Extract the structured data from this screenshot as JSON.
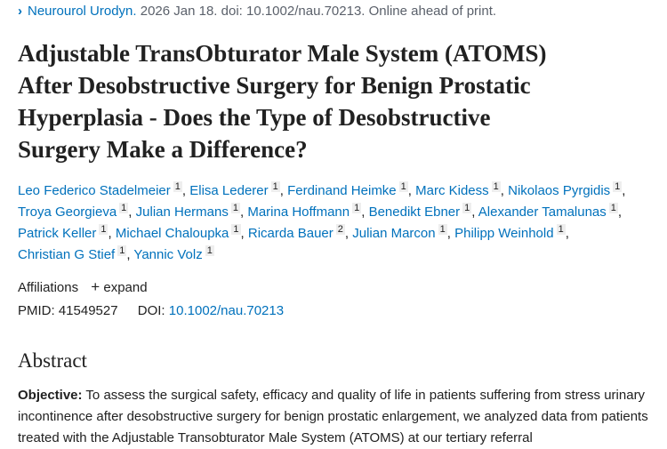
{
  "citation": {
    "journal": "Neurourol Urodyn.",
    "rest": " 2026 Jan 18. doi: 10.1002/nau.70213. Online ahead of print.",
    "icon": "chevron-right-icon"
  },
  "title_lines": [
    "Adjustable TransObturator Male System (ATOMS)",
    "After Desobstructive Surgery for Benign Prostatic",
    "Hyperplasia - Does the Type of Desobstructive",
    "Surgery Make a Difference?"
  ],
  "authors": [
    [
      {
        "name": "Leo Federico Stadelmeier",
        "aff": "1"
      },
      {
        "name": "Elisa Lederer",
        "aff": "1"
      },
      {
        "name": "Ferdinand Heimke",
        "aff": "1"
      },
      {
        "name": "Marc Kidess",
        "aff": "1"
      },
      {
        "name": "Nikolaos Pyrgidis",
        "aff": "1"
      }
    ],
    [
      {
        "name": "Troya Georgieva",
        "aff": "1"
      },
      {
        "name": "Julian Hermans",
        "aff": "1"
      },
      {
        "name": "Marina Hoffmann",
        "aff": "1"
      },
      {
        "name": "Benedikt Ebner",
        "aff": "1"
      },
      {
        "name": "Alexander Tamalunas",
        "aff": "1"
      }
    ],
    [
      {
        "name": "Patrick Keller",
        "aff": "1"
      },
      {
        "name": "Michael Chaloupka",
        "aff": "1"
      },
      {
        "name": "Ricarda Bauer",
        "aff": "2"
      },
      {
        "name": "Julian Marcon",
        "aff": "1"
      },
      {
        "name": "Philipp Weinhold",
        "aff": "1"
      }
    ],
    [
      {
        "name": "Christian G Stief",
        "aff": "1"
      },
      {
        "name": "Yannic Volz",
        "aff": "1"
      }
    ]
  ],
  "affiliations": {
    "label": "Affiliations",
    "expand": "expand",
    "icon": "plus-icon"
  },
  "ids": {
    "pmid_label": "PMID:",
    "pmid": "41549527",
    "doi_label": "DOI:",
    "doi": "10.1002/nau.70213"
  },
  "abstract": {
    "heading": "Abstract",
    "objective_label": "Objective:",
    "objective_text": " To assess the surgical safety, efficacy and quality of life in patients suffering from stress urinary incontinence after desobstructive surgery for benign prostatic enlargement, we analyzed data from patients treated with the Adjustable Transobturator Male System (ATOMS) at our tertiary referral"
  },
  "colors": {
    "link": "#0071bc",
    "text": "#212121",
    "muted": "#5b616b"
  }
}
